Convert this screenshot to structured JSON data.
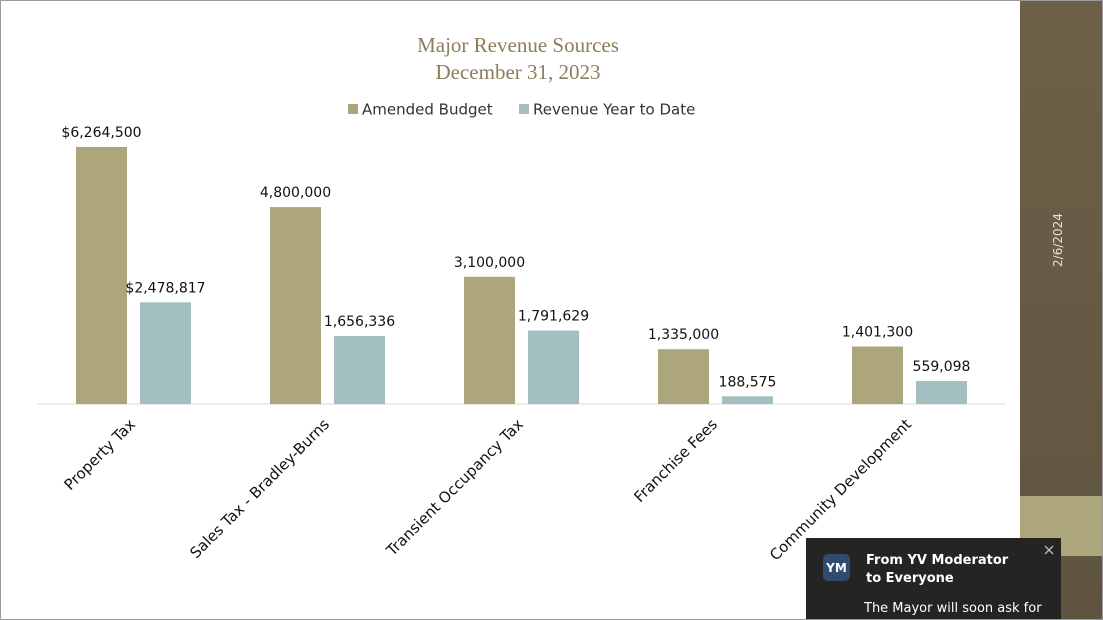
{
  "chart_data": {
    "type": "bar",
    "title": "Major Revenue Sources",
    "subtitle": "December 31, 2023",
    "categories": [
      "Property Tax",
      "Sales Tax - Bradley-Burns",
      "Transient Occupancy Tax",
      "Franchise Fees",
      "Community Development"
    ],
    "series": [
      {
        "name": "Amended Budget",
        "color": "#ada67c",
        "values": [
          6264500,
          4800000,
          3100000,
          1335000,
          1401300
        ],
        "value_labels": [
          "$6,264,500",
          "4,800,000",
          "3,100,000",
          "1,335,000",
          "1,401,300"
        ]
      },
      {
        "name": "Revenue Year to Date",
        "color": "#a3bfc0",
        "values": [
          2478817,
          1656336,
          1791629,
          188575,
          559098
        ],
        "value_labels": [
          "$2,478,817",
          "1,656,336",
          "1,791,629",
          "188,575",
          "559,098"
        ]
      }
    ],
    "legend": "top"
  },
  "sidebar": {
    "date": "2/6/2024"
  },
  "notification": {
    "avatar": "YM",
    "title": "From YV Moderator to Everyone",
    "message": "The Mayor will soon ask for"
  }
}
